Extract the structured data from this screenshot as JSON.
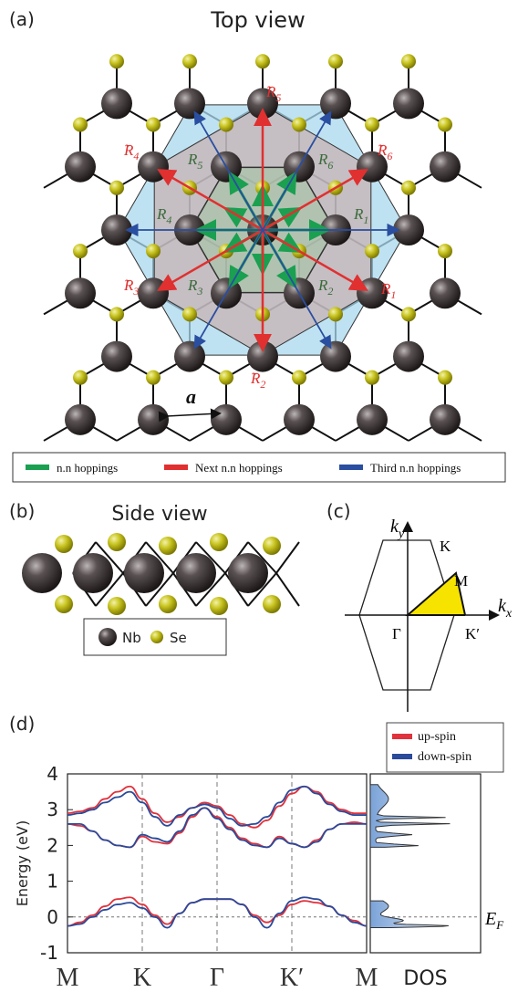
{
  "panels": {
    "a": {
      "tag": "(a)",
      "title": "Top view",
      "lattice_label": "a",
      "vectors": {
        "nn": [
          "R",
          "R",
          "R",
          "R",
          "R",
          "R"
        ],
        "nn_sub": [
          "1",
          "2",
          "3",
          "4",
          "5",
          "6"
        ],
        "tilde": [
          "R",
          "R",
          "R",
          "R",
          "R",
          "R"
        ]
      },
      "legend": {
        "nn": "n.n hoppings",
        "nnn": "Next n.n hoppings",
        "nnnn": "Third n.n hoppings"
      }
    },
    "b": {
      "tag": "(b)",
      "title": "Side view",
      "legend_nb": "Nb",
      "legend_se": "Se"
    },
    "c": {
      "tag": "(c)",
      "labels": {
        "ky": "k",
        "ky_sub": "y",
        "kx": "k",
        "kx_sub": "x",
        "K": "K",
        "M": "M",
        "Gamma": "Γ",
        "Kp": "K′"
      }
    },
    "d": {
      "tag": "(d)",
      "legend_up": "up-spin",
      "legend_down": "down-spin",
      "dos_label": "DOS",
      "ef_label": "E",
      "ef_sub": "F"
    }
  },
  "colors": {
    "nn": "#1aa050",
    "nnn": "#e03030",
    "nnnn": "#2a4ea0",
    "nb": "#3a3434",
    "se": "#c8c420",
    "up": "#e0323c",
    "down": "#2a4a9a",
    "bz_yellow": "#f7e300"
  },
  "chart_data": {
    "type": "line",
    "title": "",
    "xlabel": "",
    "ylabel": "Energy (eV)",
    "ylim": [
      -1,
      4
    ],
    "yticks": [
      -1,
      0,
      1,
      2,
      3,
      4
    ],
    "xticks": [
      "M",
      "K",
      "Γ",
      "K′",
      "M"
    ],
    "x": [
      0,
      1,
      2,
      3,
      4,
      5,
      6,
      7,
      8,
      9,
      10,
      11,
      12,
      13,
      14,
      15,
      16,
      17,
      18,
      19,
      20,
      21,
      22,
      23,
      24
    ],
    "series": [
      {
        "name": "up-spin",
        "color": "#e0323c",
        "bands": [
          [
            -0.25,
            -0.15,
            0.05,
            0.3,
            0.5,
            0.55,
            0.35,
            0.05,
            -0.2,
            0.1,
            0.4,
            0.5,
            0.5,
            0.5,
            0.35,
            0.05,
            -0.15,
            0.05,
            0.35,
            0.45,
            0.4,
            0.3,
            0.05,
            -0.1,
            -0.25
          ],
          [
            2.9,
            2.95,
            3.05,
            3.3,
            3.5,
            3.65,
            3.3,
            2.9,
            2.65,
            2.8,
            3.05,
            3.2,
            3.1,
            2.85,
            2.6,
            2.5,
            2.7,
            3.1,
            3.45,
            3.65,
            3.5,
            3.2,
            3.0,
            2.9,
            2.9
          ],
          [
            2.6,
            2.55,
            2.4,
            2.15,
            2.0,
            1.95,
            2.25,
            2.1,
            2.05,
            2.35,
            2.8,
            3.05,
            2.8,
            2.5,
            2.2,
            2.05,
            1.95,
            2.25,
            2.05,
            1.95,
            2.15,
            2.45,
            2.6,
            2.65,
            2.6
          ]
        ]
      },
      {
        "name": "down-spin",
        "color": "#2a4a9a",
        "bands": [
          [
            -0.25,
            -0.2,
            0.0,
            0.2,
            0.35,
            0.4,
            0.25,
            0.0,
            -0.3,
            0.1,
            0.4,
            0.5,
            0.5,
            0.5,
            0.35,
            0.0,
            -0.3,
            0.1,
            0.45,
            0.55,
            0.5,
            0.3,
            0.05,
            -0.15,
            -0.25
          ],
          [
            2.85,
            2.9,
            3.0,
            3.2,
            3.35,
            3.5,
            3.2,
            2.8,
            2.55,
            2.85,
            3.05,
            3.15,
            3.05,
            2.75,
            2.55,
            2.6,
            2.8,
            3.2,
            3.55,
            3.65,
            3.45,
            3.15,
            2.95,
            2.85,
            2.85
          ],
          [
            2.6,
            2.6,
            2.4,
            2.15,
            2.0,
            1.95,
            2.3,
            2.2,
            2.1,
            2.4,
            2.85,
            3.05,
            2.75,
            2.45,
            2.15,
            2.0,
            1.95,
            2.2,
            2.05,
            1.95,
            2.1,
            2.45,
            2.6,
            2.6,
            2.6
          ]
        ]
      }
    ],
    "dos": {
      "xlabel": "DOS",
      "ef_line": 0
    }
  }
}
